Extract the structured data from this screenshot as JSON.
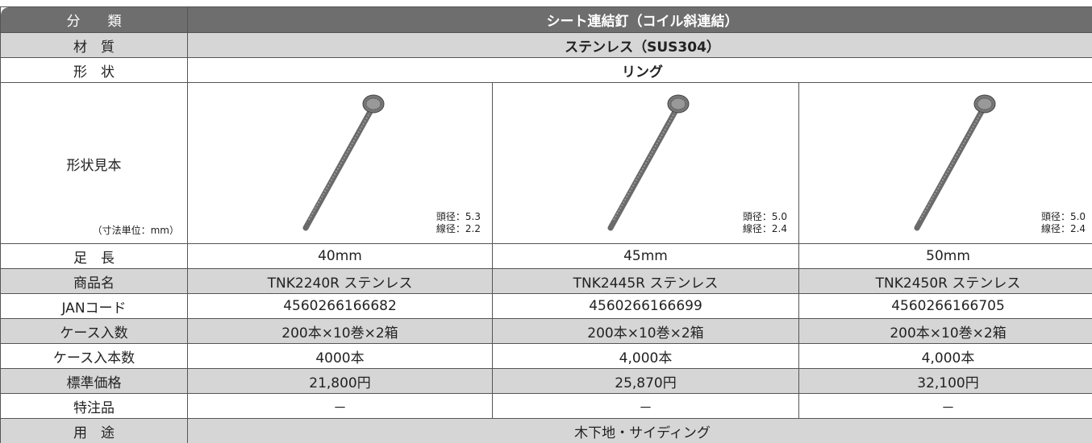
{
  "table": {
    "header": {
      "label": "分　　類",
      "value": "シート連結釘（コイル斜連結）"
    },
    "material": {
      "label": "材　質",
      "value": "ステンレス（SUS304）"
    },
    "shape": {
      "label": "形　状",
      "value": "リング"
    },
    "sample": {
      "label": "形状見本",
      "note": "（寸法単位：mm）",
      "items": [
        [
          "頭径：5.3",
          "線径：2.2"
        ],
        [
          "頭径：5.0",
          "線径：2.4"
        ],
        [
          "頭径：5.0",
          "線径：2.4"
        ]
      ]
    },
    "rows": [
      {
        "label": "足　長",
        "cells": [
          "40mm",
          "45mm",
          "50mm"
        ]
      },
      {
        "label": "商品名",
        "cells": [
          "TNK2240R ステンレス",
          "TNK2445R ステンレス",
          "TNK2450R ステンレス"
        ]
      },
      {
        "label": "JANコード",
        "cells": [
          "4560266166682",
          "4560266166699",
          "4560266166705"
        ]
      },
      {
        "label": "ケース入数",
        "cells": [
          "200本×10巻×2箱",
          "200本×10巻×2箱",
          "200本×10巻×2箱"
        ]
      },
      {
        "label": "ケース入本数",
        "cells": [
          "4000本",
          "4,000本",
          "4,000本"
        ]
      },
      {
        "label": "標準価格",
        "cells": [
          "21,800円",
          "25,870円",
          "32,100円"
        ]
      },
      {
        "label": "特注品",
        "cells": [
          "－",
          "－",
          "－"
        ]
      }
    ],
    "usage": {
      "label": "用　途",
      "value": "木下地・サイディング"
    }
  }
}
